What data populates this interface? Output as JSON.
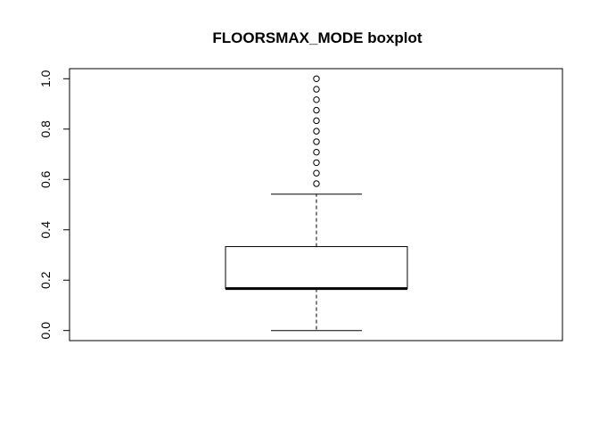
{
  "chart_data": {
    "type": "boxplot",
    "title": "FLOORSMAX_MODE boxplot",
    "xlabel": "",
    "ylabel": "",
    "ylim": [
      -0.04,
      1.04
    ],
    "yticks": [
      0.0,
      0.2,
      0.4,
      0.6,
      0.8,
      1.0
    ],
    "ytick_labels": [
      "0.0",
      "0.2",
      "0.4",
      "0.6",
      "0.8",
      "1.0"
    ],
    "grid": false,
    "box": {
      "min": 0.0,
      "q1": 0.1667,
      "median": 0.1667,
      "q3": 0.3333,
      "whisker_low": 0.0,
      "whisker_high": 0.5417
    },
    "outliers": [
      0.5833,
      0.625,
      0.6667,
      0.7083,
      0.75,
      0.7917,
      0.8333,
      0.875,
      0.9167,
      0.9583,
      1.0
    ],
    "colors": {
      "stroke": "#000000",
      "fill": "#ffffff",
      "background": "#ffffff"
    }
  }
}
